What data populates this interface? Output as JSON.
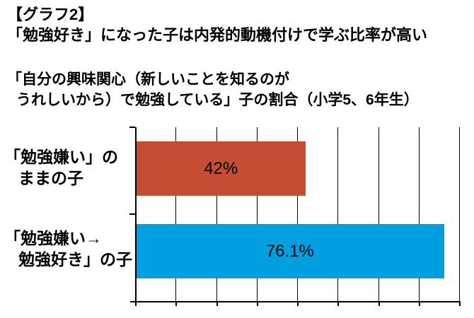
{
  "chart_data": {
    "type": "bar",
    "orientation": "horizontal",
    "title_lines": [
      "【グラフ2】",
      "「勉強好き」になった子は内発的動機付けで学ぶ比率が高い"
    ],
    "subtitle_lines": [
      "「自分の興味関心（新しいことを知るのが",
      "うれしいから）で勉強している」子の割合（小学5、6年生）"
    ],
    "categories": [
      {
        "label_lines": [
          "「勉強嫌い」の",
          "ままの子"
        ]
      },
      {
        "label_lines": [
          "「勉強嫌い→",
          "勉強好き」の子"
        ]
      }
    ],
    "values": [
      42,
      76.1
    ],
    "value_labels": [
      "42%",
      "76.1%"
    ],
    "bar_colors": [
      "#c44d34",
      "#009fe0"
    ],
    "xlim": [
      0,
      80
    ],
    "gridline_step": 10,
    "grid": true,
    "legend": "none",
    "axis_color": "#000000",
    "background_color": "#ffffff"
  }
}
